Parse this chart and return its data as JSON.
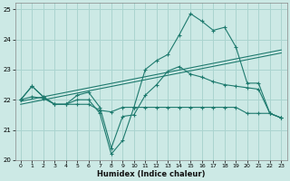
{
  "xlabel": "Humidex (Indice chaleur)",
  "background_color": "#cce9e5",
  "grid_color": "#aad4cf",
  "line_color": "#1e7a6e",
  "x_values": [
    0,
    1,
    2,
    3,
    4,
    5,
    6,
    7,
    8,
    9,
    10,
    11,
    12,
    13,
    14,
    15,
    16,
    17,
    18,
    19,
    20,
    21,
    22,
    23
  ],
  "line_main_y": [
    22.0,
    22.45,
    22.1,
    21.85,
    21.85,
    22.0,
    22.0,
    21.55,
    20.2,
    20.65,
    21.75,
    23.0,
    23.3,
    23.5,
    24.15,
    24.85,
    24.6,
    24.3,
    24.4,
    23.75,
    22.55,
    22.55,
    21.55,
    21.4
  ],
  "line_flat_y": [
    22.0,
    22.1,
    22.05,
    21.85,
    21.85,
    21.85,
    21.85,
    21.65,
    21.6,
    21.75,
    21.75,
    21.75,
    21.75,
    21.75,
    21.75,
    21.75,
    21.75,
    21.75,
    21.75,
    21.75,
    21.55,
    21.55,
    21.55,
    21.4
  ],
  "line_third_y": [
    22.0,
    22.45,
    22.1,
    21.85,
    21.85,
    22.15,
    22.25,
    21.75,
    20.4,
    21.45,
    21.5,
    22.15,
    22.5,
    22.95,
    23.1,
    22.85,
    22.75,
    22.6,
    22.5,
    22.45,
    22.4,
    22.35,
    21.55,
    21.4
  ],
  "reg1_y0": 21.85,
  "reg1_y1": 23.55,
  "reg2_y0": 21.95,
  "reg2_y1": 23.65,
  "ylim_min": 20.0,
  "ylim_max": 25.2,
  "yticks": [
    20,
    21,
    22,
    23,
    24,
    25
  ],
  "xticks": [
    0,
    1,
    2,
    3,
    4,
    5,
    6,
    7,
    8,
    9,
    10,
    11,
    12,
    13,
    14,
    15,
    16,
    17,
    18,
    19,
    20,
    21,
    22,
    23
  ],
  "figsize": [
    3.2,
    2.0
  ],
  "dpi": 100
}
